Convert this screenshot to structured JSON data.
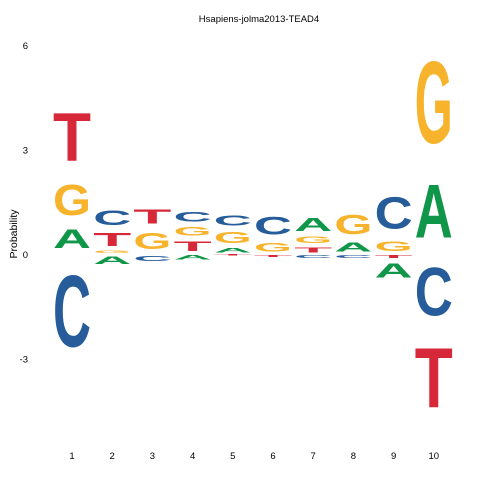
{
  "chart_data": {
    "type": "sequence-logo",
    "title": "Hsapiens-jolma2013-TEAD4",
    "ylabel": "Probability",
    "xlabel": "",
    "ylim": [
      -4.95,
      6.2
    ],
    "yticks": [
      6,
      3,
      0,
      -3
    ],
    "ytick_labels": [
      "6",
      "3",
      "0",
      "-3"
    ],
    "positions": [
      "1",
      "2",
      "3",
      "4",
      "5",
      "6",
      "7",
      "8",
      "9",
      "10"
    ],
    "colors": {
      "A": "#109648",
      "C": "#255C99",
      "G": "#F7B32B",
      "T": "#D62839"
    },
    "columns": [
      {
        "pos": "1",
        "stack": [
          {
            "letter": "C",
            "from": -3.3,
            "to": 0.0
          },
          {
            "letter": "A",
            "from": 0.0,
            "to": 0.85
          },
          {
            "letter": "G",
            "from": 0.85,
            "to": 2.25
          },
          {
            "letter": "T",
            "from": 2.25,
            "to": 4.45
          }
        ]
      },
      {
        "pos": "2",
        "stack": [
          {
            "letter": "A",
            "from": -0.35,
            "to": 0.0
          },
          {
            "letter": "G",
            "from": 0.0,
            "to": 0.12
          },
          {
            "letter": "T",
            "from": 0.12,
            "to": 0.7
          },
          {
            "letter": "C",
            "from": 0.7,
            "to": 1.38
          }
        ]
      },
      {
        "pos": "3",
        "stack": [
          {
            "letter": "C",
            "from": -0.25,
            "to": 0.0
          },
          {
            "letter": "G",
            "from": 0.0,
            "to": 0.75
          },
          {
            "letter": "T",
            "from": 0.75,
            "to": 1.4
          }
        ]
      },
      {
        "pos": "4",
        "stack": [
          {
            "letter": "A",
            "from": -0.2,
            "to": 0.0
          },
          {
            "letter": "T",
            "from": 0.0,
            "to": 0.45
          },
          {
            "letter": "G",
            "from": 0.45,
            "to": 0.85
          },
          {
            "letter": "C",
            "from": 0.85,
            "to": 1.3
          }
        ]
      },
      {
        "pos": "5",
        "stack": [
          {
            "letter": "T",
            "from": -0.06,
            "to": 0.0
          },
          {
            "letter": "A",
            "from": 0.0,
            "to": 0.22
          },
          {
            "letter": "G",
            "from": 0.22,
            "to": 0.72
          },
          {
            "letter": "C",
            "from": 0.72,
            "to": 1.2
          }
        ]
      },
      {
        "pos": "6",
        "stack": [
          {
            "letter": "T",
            "from": -0.1,
            "to": 0.0
          },
          {
            "letter": "G",
            "from": 0.0,
            "to": 0.4
          },
          {
            "letter": "C",
            "from": 0.4,
            "to": 1.2
          }
        ]
      },
      {
        "pos": "7",
        "stack": [
          {
            "letter": "C",
            "from": -0.15,
            "to": 0.0
          },
          {
            "letter": "T",
            "from": 0.0,
            "to": 0.25
          },
          {
            "letter": "G",
            "from": 0.25,
            "to": 0.55
          },
          {
            "letter": "A",
            "from": 0.55,
            "to": 1.15
          }
        ]
      },
      {
        "pos": "8",
        "stack": [
          {
            "letter": "C",
            "from": -0.15,
            "to": 0.0
          },
          {
            "letter": "A",
            "from": 0.0,
            "to": 0.4
          },
          {
            "letter": "G",
            "from": 0.4,
            "to": 1.3
          }
        ]
      },
      {
        "pos": "9",
        "stack": [
          {
            "letter": "A",
            "from": -0.8,
            "to": -0.15
          },
          {
            "letter": "T",
            "from": -0.15,
            "to": 0.0
          },
          {
            "letter": "G",
            "from": 0.0,
            "to": 0.45
          },
          {
            "letter": "C",
            "from": 0.45,
            "to": 1.9
          }
        ]
      },
      {
        "pos": "10",
        "stack": [
          {
            "letter": "T",
            "from": -4.95,
            "to": -2.2
          },
          {
            "letter": "C",
            "from": -2.2,
            "to": 0.0
          },
          {
            "letter": "A",
            "from": 0.0,
            "to": 2.45
          },
          {
            "letter": "G",
            "from": 2.45,
            "to": 6.2
          }
        ]
      }
    ]
  }
}
